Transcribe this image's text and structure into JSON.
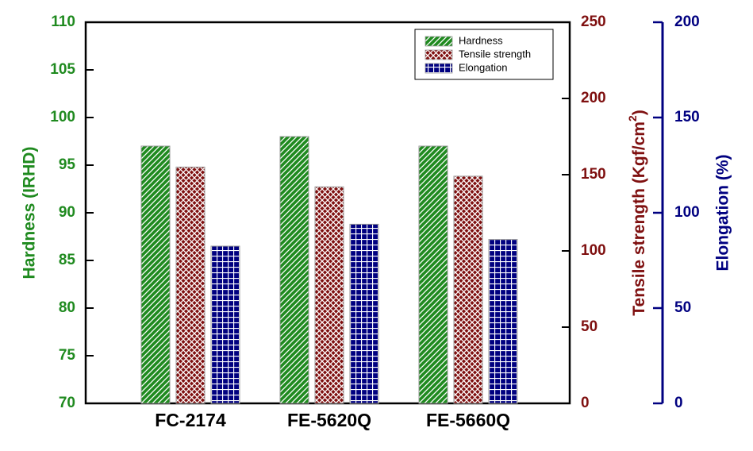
{
  "chart_data": {
    "type": "bar",
    "categories": [
      "FC-2174",
      "FE-5620Q",
      "FE-5660Q"
    ],
    "series": [
      {
        "name": "Hardness",
        "color": "#1f8a1f",
        "pattern": "hatch",
        "axis": "y",
        "values": [
          97,
          98,
          97
        ]
      },
      {
        "name": "Tensile strength",
        "color": "#7f1010",
        "pattern": "cross",
        "axis": "y2",
        "values": [
          155,
          142,
          149
        ]
      },
      {
        "name": "Elongation",
        "color": "#000080",
        "pattern": "grid",
        "axis": "y3",
        "values": [
          82.5,
          94,
          86
        ]
      }
    ],
    "ylabel": "Hardness (IRHD)",
    "ylim": [
      70,
      110
    ],
    "yticks": [
      70,
      75,
      80,
      85,
      90,
      95,
      100,
      105,
      110
    ],
    "y2label": [
      "Tensile strength (Kgf/cm",
      "2",
      ")"
    ],
    "y2lim": [
      0,
      250
    ],
    "y2ticks": [
      0,
      50,
      100,
      150,
      200,
      250
    ],
    "y3label": "Elongation (%)",
    "y3lim": [
      0,
      200
    ],
    "y3ticks": [
      0,
      50,
      100,
      150,
      200
    ],
    "legend": "top-right"
  }
}
